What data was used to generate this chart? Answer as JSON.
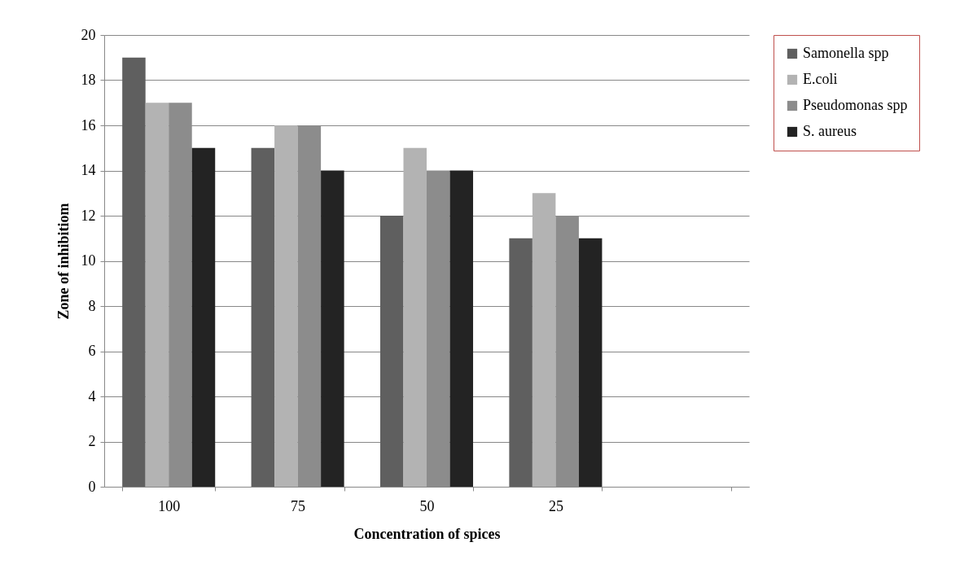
{
  "chart_data": {
    "type": "bar",
    "xlabel": "Concentration of spices",
    "ylabel": "Zone of inhibitiom",
    "categories": [
      "100",
      "75",
      "50",
      "25",
      null
    ],
    "series": [
      {
        "name": "Samonella spp",
        "color": "#5f5f5f",
        "values": [
          19,
          15,
          12,
          11,
          null
        ]
      },
      {
        "name": "E.coli",
        "color": "#b3b3b3",
        "values": [
          17,
          16,
          15,
          13,
          null
        ]
      },
      {
        "name": "Pseudomonas spp",
        "color": "#8c8c8c",
        "values": [
          17,
          16,
          14,
          12,
          null
        ]
      },
      {
        "name": "S. aureus",
        "color": "#232323",
        "values": [
          15,
          14,
          14,
          11,
          null
        ]
      }
    ],
    "ylim": [
      0,
      20
    ],
    "yticks": [
      0,
      2,
      4,
      6,
      8,
      10,
      12,
      14,
      16,
      18,
      20
    ],
    "grid": "y",
    "legend": "right"
  }
}
